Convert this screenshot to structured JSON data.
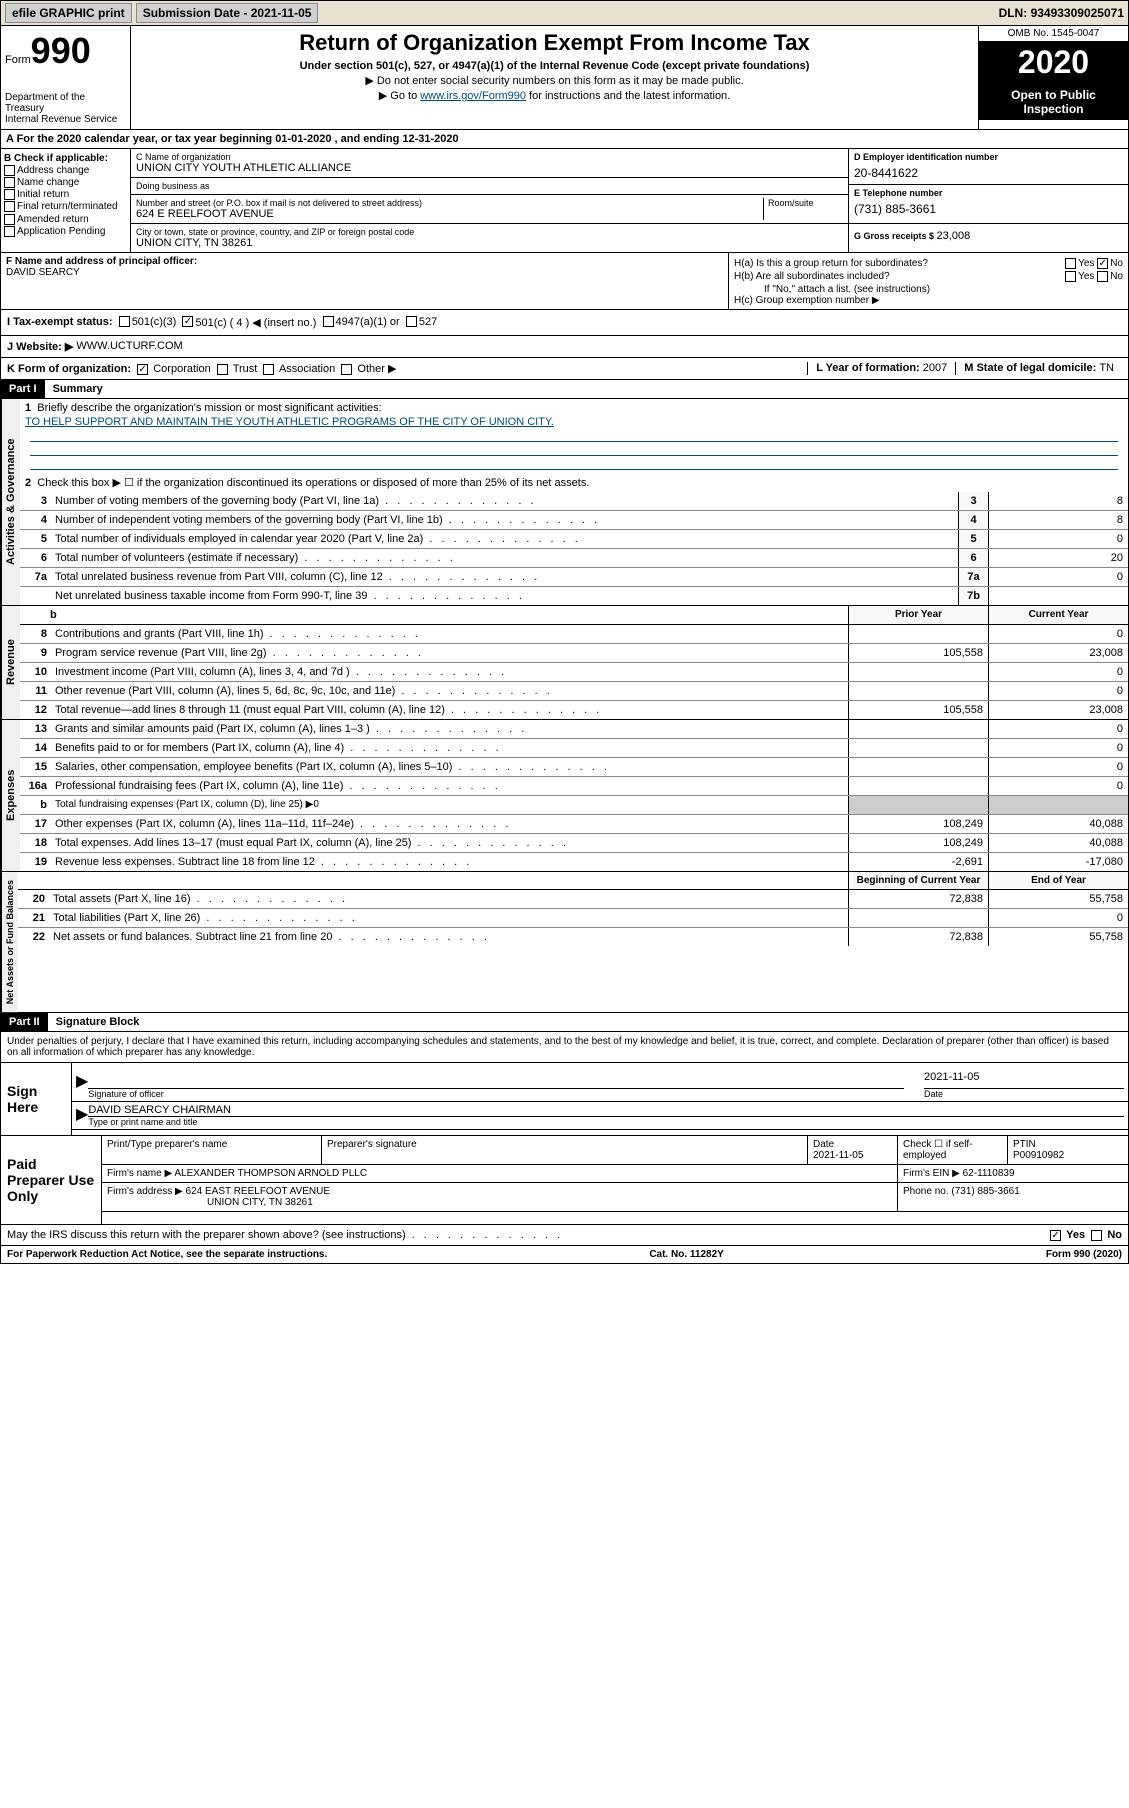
{
  "topbar": {
    "efile": "efile GRAPHIC print",
    "subdate_lbl": "Submission Date - ",
    "subdate": "2021-11-05",
    "dln_lbl": "DLN: ",
    "dln": "93493309025071"
  },
  "header": {
    "form_lbl": "Form",
    "form_num": "990",
    "dept": "Department of the Treasury\nInternal Revenue Service",
    "title": "Return of Organization Exempt From Income Tax",
    "sub": "Under section 501(c), 527, or 4947(a)(1) of the Internal Revenue Code (except private foundations)",
    "note1": "▶ Do not enter social security numbers on this form as it may be made public.",
    "note2_pre": "▶ Go to ",
    "note2_link": "www.irs.gov/Form990",
    "note2_post": " for instructions and the latest information.",
    "omb": "OMB No. 1545-0047",
    "year": "2020",
    "inspection": "Open to Public Inspection"
  },
  "period": "A For the 2020 calendar year, or tax year beginning 01-01-2020    , and ending 12-31-2020",
  "checkB": {
    "lbl": "B Check if applicable:",
    "items": [
      "Address change",
      "Name change",
      "Initial return",
      "Final return/terminated",
      "Amended return",
      "Application Pending"
    ]
  },
  "org": {
    "name_lbl": "C Name of organization",
    "name": "UNION CITY YOUTH ATHLETIC ALLIANCE",
    "dba_lbl": "Doing business as",
    "dba": "",
    "addr_lbl": "Number and street (or P.O. box if mail is not delivered to street address)",
    "room_lbl": "Room/suite",
    "addr": "624 E REELFOOT AVENUE",
    "city_lbl": "City or town, state or province, country, and ZIP or foreign postal code",
    "city": "UNION CITY, TN  38261"
  },
  "ein": {
    "lbl": "D Employer identification number",
    "val": "20-8441622",
    "tel_lbl": "E Telephone number",
    "tel": "(731) 885-3661",
    "gross_lbl": "G Gross receipts $ ",
    "gross": "23,008"
  },
  "officer": {
    "lbl": "F  Name and address of principal officer:",
    "name": "DAVID SEARCY"
  },
  "h": {
    "a": "H(a)  Is this a group return for subordinates?",
    "b": "H(b)  Are all subordinates included?",
    "b_note": "If \"No,\" attach a list. (see instructions)",
    "c": "H(c)  Group exemption number ▶",
    "yes": "Yes",
    "no": "No"
  },
  "taxstatus": {
    "lbl": "I  Tax-exempt status:",
    "opts": [
      "501(c)(3)",
      "501(c) ( 4 ) ◀ (insert no.)",
      "4947(a)(1) or",
      "527"
    ]
  },
  "website": {
    "lbl": "J  Website: ▶",
    "val": "WWW.UCTURF.COM"
  },
  "formorg": {
    "lbl": "K Form of organization:",
    "opts": [
      "Corporation",
      "Trust",
      "Association",
      "Other ▶"
    ],
    "year_lbl": "L Year of formation: ",
    "year": "2007",
    "state_lbl": "M State of legal domicile: ",
    "state": "TN"
  },
  "part1": {
    "hdr": "Part I",
    "title": "Summary"
  },
  "governance": {
    "label": "Activities & Governance",
    "line1": "Briefly describe the organization's mission or most significant activities:",
    "mission": "TO HELP SUPPORT AND MAINTAIN THE YOUTH ATHLETIC PROGRAMS OF THE CITY OF UNION CITY.",
    "line2": "Check this box ▶ ☐  if the organization discontinued its operations or disposed of more than 25% of its net assets.",
    "rows": [
      {
        "n": "3",
        "d": "Number of voting members of the governing body (Part VI, line 1a)",
        "b": "3",
        "v": "8"
      },
      {
        "n": "4",
        "d": "Number of independent voting members of the governing body (Part VI, line 1b)",
        "b": "4",
        "v": "8"
      },
      {
        "n": "5",
        "d": "Total number of individuals employed in calendar year 2020 (Part V, line 2a)",
        "b": "5",
        "v": "0"
      },
      {
        "n": "6",
        "d": "Total number of volunteers (estimate if necessary)",
        "b": "6",
        "v": "20"
      },
      {
        "n": "7a",
        "d": "Total unrelated business revenue from Part VIII, column (C), line 12",
        "b": "7a",
        "v": "0"
      },
      {
        "n": "",
        "d": "Net unrelated business taxable income from Form 990-T, line 39",
        "b": "7b",
        "v": ""
      }
    ]
  },
  "revenue": {
    "label": "Revenue",
    "prior_hdr": "Prior Year",
    "curr_hdr": "Current Year",
    "rows": [
      {
        "n": "8",
        "d": "Contributions and grants (Part VIII, line 1h)",
        "p": "",
        "c": "0"
      },
      {
        "n": "9",
        "d": "Program service revenue (Part VIII, line 2g)",
        "p": "105,558",
        "c": "23,008"
      },
      {
        "n": "10",
        "d": "Investment income (Part VIII, column (A), lines 3, 4, and 7d )",
        "p": "",
        "c": "0"
      },
      {
        "n": "11",
        "d": "Other revenue (Part VIII, column (A), lines 5, 6d, 8c, 9c, 10c, and 11e)",
        "p": "",
        "c": "0"
      },
      {
        "n": "12",
        "d": "Total revenue—add lines 8 through 11 (must equal Part VIII, column (A), line 12)",
        "p": "105,558",
        "c": "23,008"
      }
    ]
  },
  "expenses": {
    "label": "Expenses",
    "rows": [
      {
        "n": "13",
        "d": "Grants and similar amounts paid (Part IX, column (A), lines 1–3 )",
        "p": "",
        "c": "0"
      },
      {
        "n": "14",
        "d": "Benefits paid to or for members (Part IX, column (A), line 4)",
        "p": "",
        "c": "0"
      },
      {
        "n": "15",
        "d": "Salaries, other compensation, employee benefits (Part IX, column (A), lines 5–10)",
        "p": "",
        "c": "0"
      },
      {
        "n": "16a",
        "d": "Professional fundraising fees (Part IX, column (A), line 11e)",
        "p": "",
        "c": "0"
      },
      {
        "n": "b",
        "d": "Total fundraising expenses (Part IX, column (D), line 25) ▶0",
        "p": null,
        "c": null
      },
      {
        "n": "17",
        "d": "Other expenses (Part IX, column (A), lines 11a–11d, 11f–24e)",
        "p": "108,249",
        "c": "40,088"
      },
      {
        "n": "18",
        "d": "Total expenses. Add lines 13–17 (must equal Part IX, column (A), line 25)",
        "p": "108,249",
        "c": "40,088"
      },
      {
        "n": "19",
        "d": "Revenue less expenses. Subtract line 18 from line 12",
        "p": "-2,691",
        "c": "-17,080"
      }
    ]
  },
  "netassets": {
    "label": "Net Assets or Fund Balances",
    "beg_hdr": "Beginning of Current Year",
    "end_hdr": "End of Year",
    "rows": [
      {
        "n": "20",
        "d": "Total assets (Part X, line 16)",
        "p": "72,838",
        "c": "55,758"
      },
      {
        "n": "21",
        "d": "Total liabilities (Part X, line 26)",
        "p": "",
        "c": "0"
      },
      {
        "n": "22",
        "d": "Net assets or fund balances. Subtract line 21 from line 20",
        "p": "72,838",
        "c": "55,758"
      }
    ]
  },
  "part2": {
    "hdr": "Part II",
    "title": "Signature Block"
  },
  "decl": "Under penalties of perjury, I declare that I have examined this return, including accompanying schedules and statements, and to the best of my knowledge and belief, it is true, correct, and complete. Declaration of preparer (other than officer) is based on all information of which preparer has any knowledge.",
  "sign": {
    "lbl": "Sign Here",
    "sig_lbl": "Signature of officer",
    "date_lbl": "Date",
    "date": "2021-11-05",
    "name": "DAVID SEARCY CHAIRMAN",
    "name_lbl": "Type or print name and title"
  },
  "prep": {
    "lbl": "Paid Preparer Use Only",
    "h1": "Print/Type preparer's name",
    "h2": "Preparer's signature",
    "h3": "Date",
    "h3v": "2021-11-05",
    "h4": "Check ☐ if self-employed",
    "h5": "PTIN",
    "h5v": "P00910982",
    "firm_lbl": "Firm's name     ▶ ",
    "firm": "ALEXANDER THOMPSON ARNOLD PLLC",
    "ein_lbl": "Firm's EIN ▶ ",
    "ein": "62-1110839",
    "addr_lbl": "Firm's address ▶ ",
    "addr1": "624 EAST REELFOOT AVENUE",
    "addr2": "UNION CITY, TN  38261",
    "phone_lbl": "Phone no. ",
    "phone": "(731) 885-3661"
  },
  "discuss": "May the IRS discuss this return with the preparer shown above? (see instructions)",
  "footer": {
    "left": "For Paperwork Reduction Act Notice, see the separate instructions.",
    "mid": "Cat. No. 11282Y",
    "right": "Form 990 (2020)"
  }
}
